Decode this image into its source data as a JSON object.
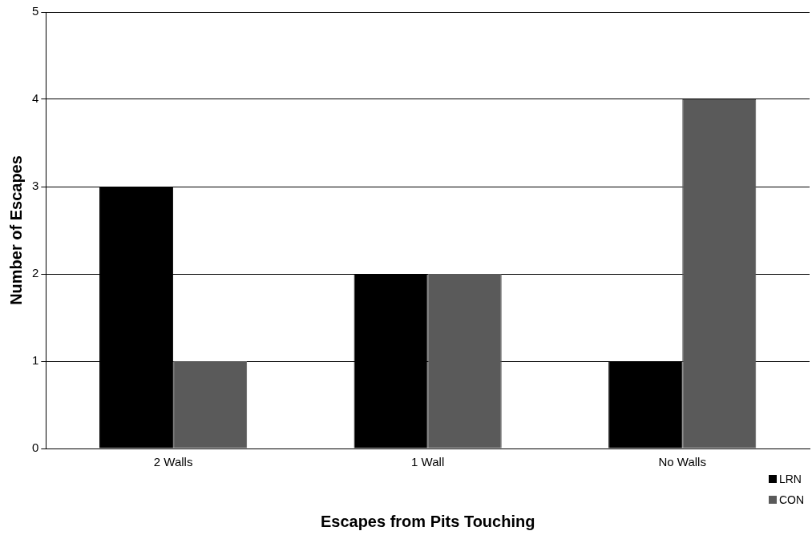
{
  "chart_data": {
    "type": "bar",
    "xlabel": "Escapes from Pits Touching",
    "ylabel": "Number of Escapes",
    "categories": [
      "2 Walls",
      "1 Wall",
      "No Walls"
    ],
    "series": [
      {
        "name": "LRN",
        "color": "#000000",
        "values": [
          3,
          2,
          1
        ]
      },
      {
        "name": "CON",
        "color": "#5a5a5a",
        "values": [
          1,
          2,
          4
        ]
      }
    ],
    "ylim": [
      0,
      5
    ],
    "yticks": [
      0,
      1,
      2,
      3,
      4,
      5
    ],
    "grid": "y",
    "legend": "bottom right"
  }
}
